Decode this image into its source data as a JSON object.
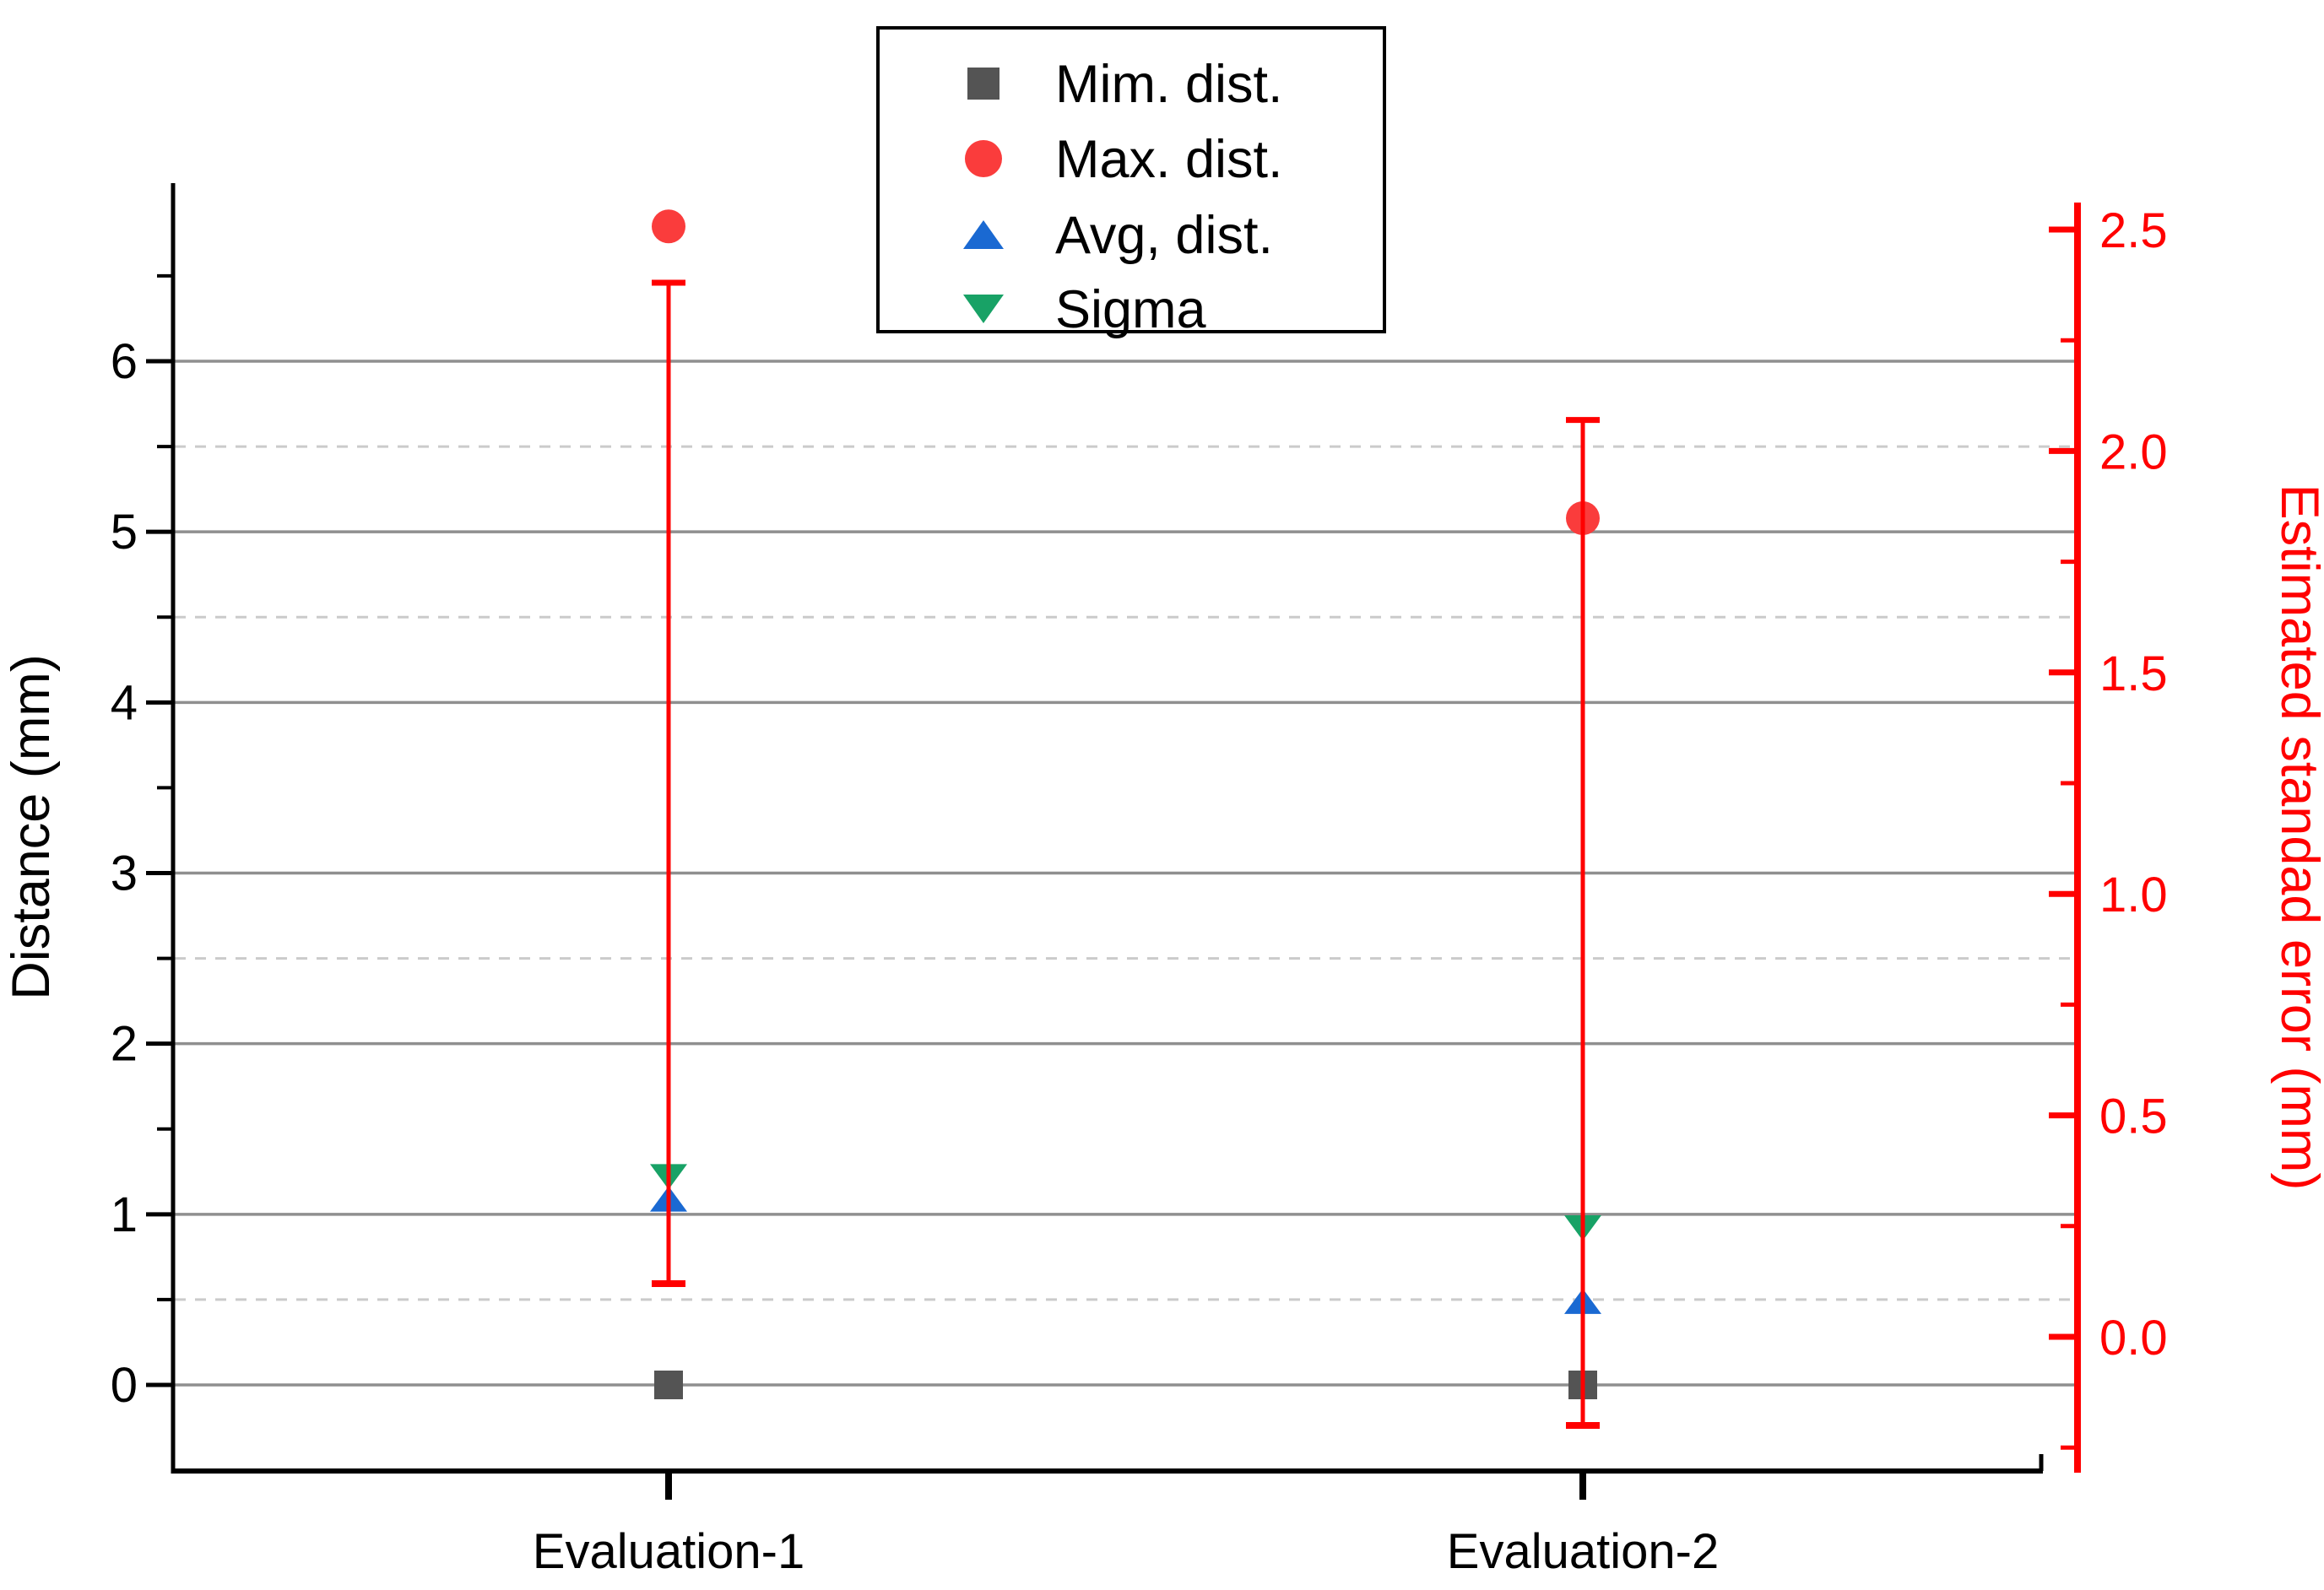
{
  "chart_data": {
    "type": "scatter",
    "title": "",
    "categories": [
      "Evaluation-1",
      "Evaluation-2"
    ],
    "left_axis": {
      "label": "Distance (mm)",
      "tick_labels": [
        "0",
        "1",
        "2",
        "3",
        "4",
        "5",
        "6"
      ],
      "major_ticks": [
        0,
        1,
        2,
        3,
        4,
        5,
        6
      ],
      "minor_ticks": [
        0.5,
        1.5,
        2.5,
        3.5,
        4.5,
        5.5,
        6.5
      ],
      "range": [
        -0.51,
        7.04
      ],
      "color": "#000000"
    },
    "right_axis": {
      "label": "Estimated standad error (mm)",
      "tick_labels": [
        "0.0",
        "0.5",
        "1.0",
        "1.5",
        "2.0",
        "2.5"
      ],
      "major_ticks": [
        0.0,
        0.5,
        1.0,
        1.5,
        2.0,
        2.5
      ],
      "minor_ticks": [
        -0.25,
        0.25,
        0.75,
        1.25,
        1.75,
        2.25
      ],
      "range": [
        -0.31,
        2.56
      ],
      "color": "#ff0000"
    },
    "gridlines": {
      "solid_at": [
        0,
        1,
        2,
        3,
        4,
        5,
        6
      ],
      "dashed_at": [
        0.5,
        2.5,
        4.5,
        5.5
      ],
      "solid_color": "#8f8f8f",
      "dashed_color": "#cbcbcb"
    },
    "series": [
      {
        "name": "Mim. dist.",
        "marker": "square",
        "color": "#545454",
        "axis": "left",
        "values": [
          0.0,
          0.0
        ]
      },
      {
        "name": "Max. dist.",
        "marker": "circle",
        "color": "#fa3c3c",
        "axis": "left",
        "values": [
          6.79,
          5.08
        ]
      },
      {
        "name": "Avg, dist.",
        "marker": "triangle-up",
        "color": "#1a69d2",
        "axis": "left",
        "values": [
          1.09,
          0.49
        ]
      },
      {
        "name": "Sigma",
        "marker": "triangle-down",
        "color": "#18a266",
        "axis": "left",
        "values": [
          1.22,
          0.92
        ]
      }
    ],
    "error_bars": {
      "axis": "right",
      "color": "#ff0000",
      "ranges": [
        {
          "category": "Evaluation-1",
          "low": 0.12,
          "high": 2.38
        },
        {
          "category": "Evaluation-2",
          "low": -0.2,
          "high": 2.07
        }
      ]
    },
    "legend": {
      "position": "top-center",
      "entries": [
        {
          "label": "Mim. dist.",
          "marker": "square",
          "color": "#545454"
        },
        {
          "label": "Max. dist.",
          "marker": "circle",
          "color": "#fa3c3c"
        },
        {
          "label": "Avg, dist.",
          "marker": "triangle-up",
          "color": "#1a69d2"
        },
        {
          "label": "Sigma",
          "marker": "triangle-down",
          "color": "#18a266"
        }
      ]
    }
  }
}
